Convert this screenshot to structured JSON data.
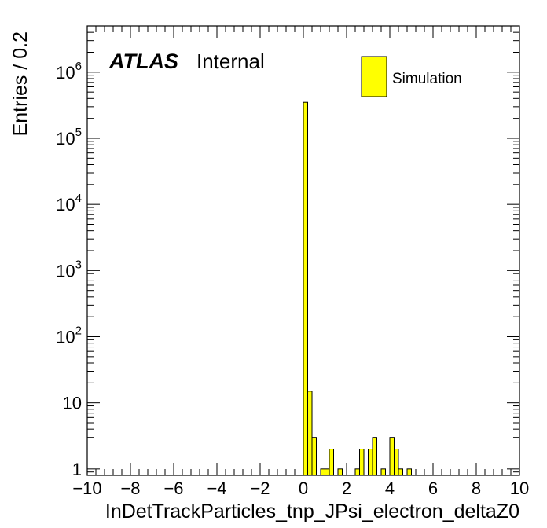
{
  "chart_data": {
    "type": "bar",
    "xlabel": "InDetTrackParticles_tnp_JPsi_electron_deltaZ0",
    "ylabel": "Entries / 0.2",
    "xlim": [
      -10,
      10
    ],
    "ylim": [
      0.8,
      5000000
    ],
    "yscale": "log",
    "bin_width": 0.2,
    "x_ticks": [
      "−10",
      "−8",
      "−6",
      "−4",
      "−2",
      "0",
      "2",
      "4",
      "6",
      "8",
      "10"
    ],
    "x_tick_values": [
      -10,
      -8,
      -6,
      -4,
      -2,
      0,
      2,
      4,
      6,
      8,
      10
    ],
    "y_ticks": [
      {
        "value": 1,
        "base": "1",
        "exp": ""
      },
      {
        "value": 10,
        "base": "10",
        "exp": ""
      },
      {
        "value": 100,
        "base": "10",
        "exp": "2"
      },
      {
        "value": 1000,
        "base": "10",
        "exp": "3"
      },
      {
        "value": 10000,
        "base": "10",
        "exp": "4"
      },
      {
        "value": 100000,
        "base": "10",
        "exp": "5"
      },
      {
        "value": 1000000,
        "base": "10",
        "exp": "6"
      }
    ],
    "grid": false,
    "color": "#ffff00",
    "legend_position": "top-right",
    "series": [
      {
        "name": "Simulation",
        "bins": [
          {
            "x": 0.0,
            "value": 350000
          },
          {
            "x": 0.2,
            "value": 15
          },
          {
            "x": 0.4,
            "value": 3
          },
          {
            "x": 0.8,
            "value": 1
          },
          {
            "x": 1.0,
            "value": 1
          },
          {
            "x": 1.2,
            "value": 2
          },
          {
            "x": 1.6,
            "value": 1
          },
          {
            "x": 2.4,
            "value": 1
          },
          {
            "x": 2.6,
            "value": 2
          },
          {
            "x": 3.0,
            "value": 2
          },
          {
            "x": 3.2,
            "value": 3
          },
          {
            "x": 3.6,
            "value": 1
          },
          {
            "x": 4.0,
            "value": 3
          },
          {
            "x": 4.2,
            "value": 2
          },
          {
            "x": 4.4,
            "value": 1
          },
          {
            "x": 4.8,
            "value": 1
          }
        ]
      }
    ],
    "annotations": {
      "atlas": "ATLAS",
      "status": "Internal"
    }
  }
}
